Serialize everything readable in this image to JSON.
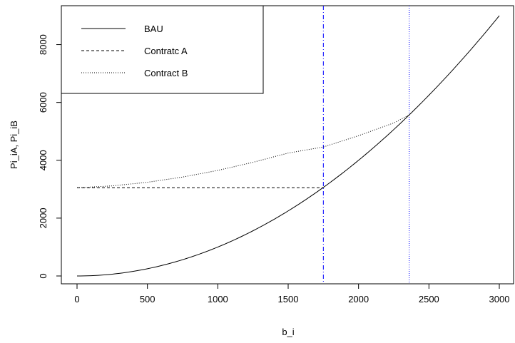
{
  "chart_data": {
    "type": "line",
    "xlabel": "b_i",
    "ylabel": "Pi_iA, Pi_iB",
    "xlim": [
      0,
      3000
    ],
    "ylim": [
      0,
      9000
    ],
    "x_ticks": [
      0,
      500,
      1000,
      1500,
      2000,
      2500,
      3000
    ],
    "y_ticks": [
      0,
      2000,
      4000,
      6000,
      8000
    ],
    "grid": false,
    "legend_position": "top-left",
    "series": [
      {
        "name": "BAU",
        "style": "solid",
        "color": "#000000",
        "x": [
          0,
          250,
          500,
          750,
          1000,
          1250,
          1500,
          1750,
          2000,
          2250,
          2500,
          2750,
          3000
        ],
        "y": [
          0,
          62.5,
          250,
          562.5,
          1000,
          1562.5,
          2250,
          3062.5,
          4000,
          5062.5,
          6250,
          7562.5,
          9000
        ]
      },
      {
        "name": "Contratc A",
        "style": "dashed",
        "color": "#000000",
        "x": [
          0,
          1750
        ],
        "y": [
          3050,
          3050
        ]
      },
      {
        "name": "Contract B",
        "style": "dotted",
        "color": "#000000",
        "x": [
          0,
          250,
          500,
          750,
          1000,
          1250,
          1500,
          1750,
          2000,
          2250,
          2360
        ],
        "y": [
          3050,
          3115,
          3240,
          3420,
          3650,
          3930,
          4250,
          4460,
          4850,
          5290,
          5570
        ]
      }
    ],
    "vertical_lines": [
      {
        "x": 1750,
        "style": "dashdot",
        "color": "#0000ff"
      },
      {
        "x": 2360,
        "style": "dotted",
        "color": "#0000ff"
      }
    ]
  }
}
